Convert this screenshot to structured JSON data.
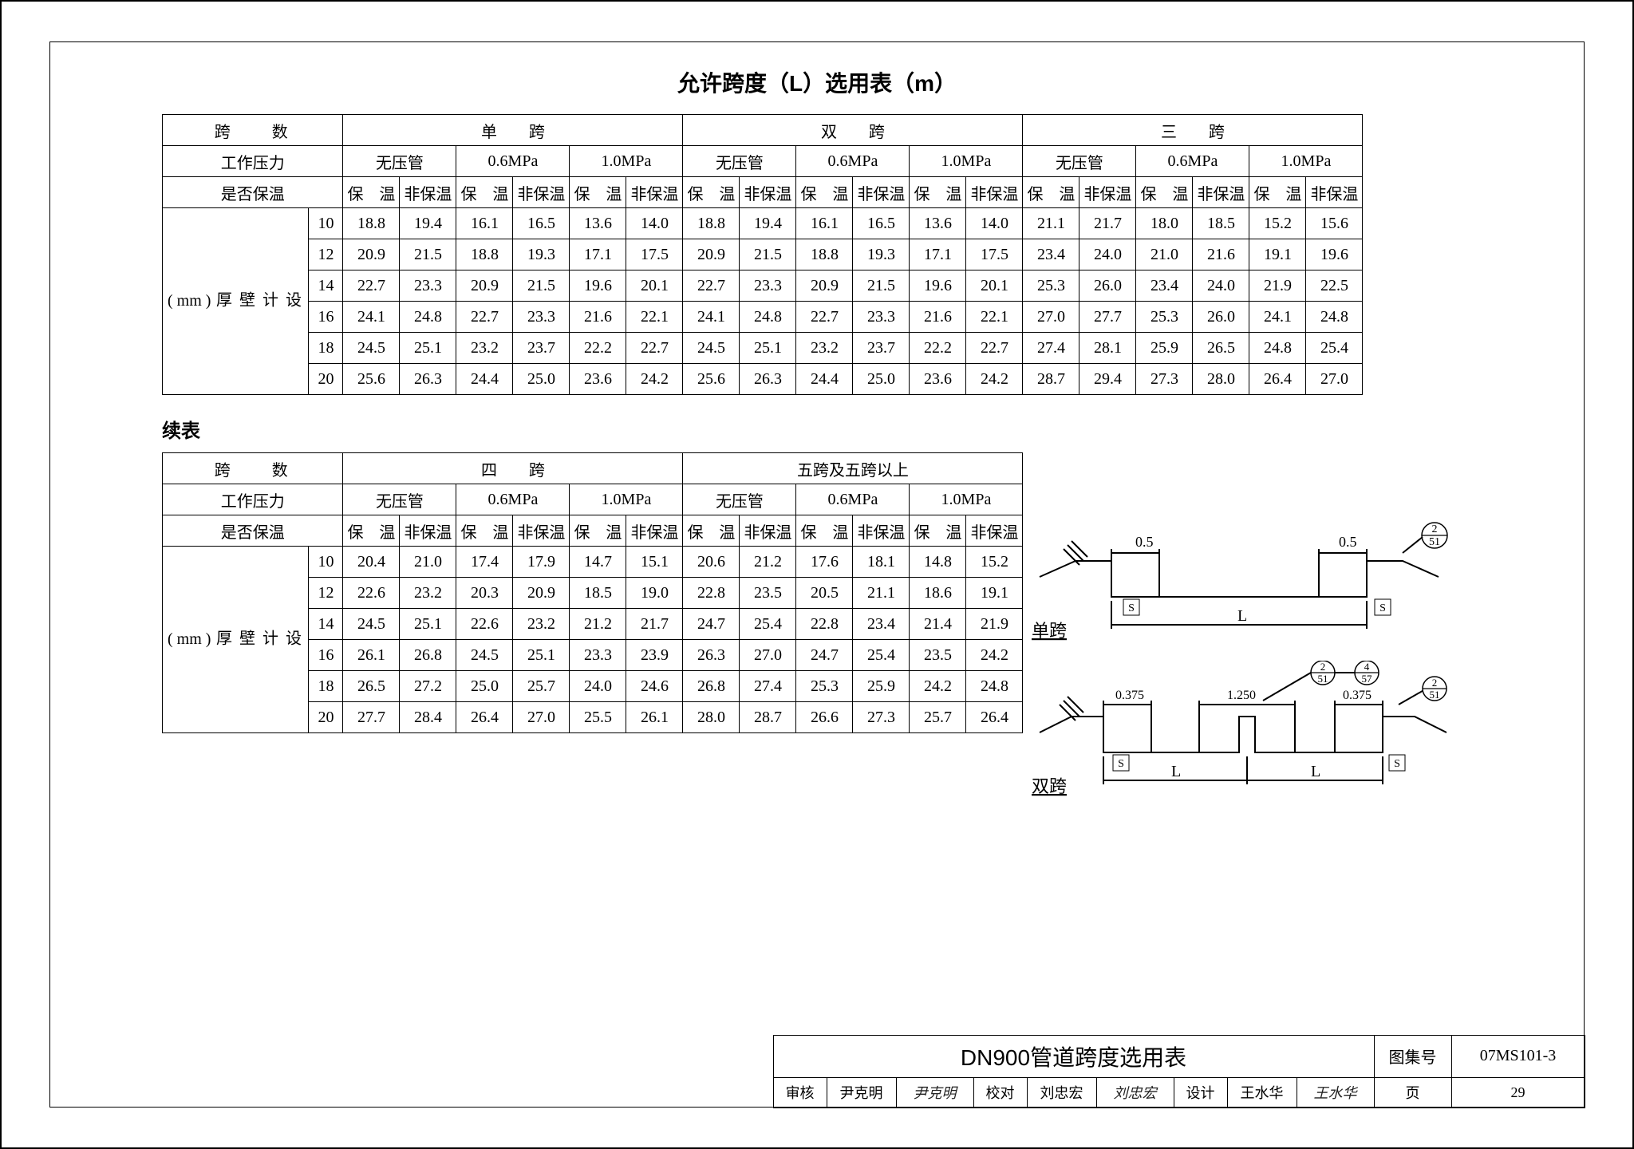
{
  "title": "允许跨度（L）选用表（m）",
  "subtitle_continued": "续表",
  "labels": {
    "span_count": "跨　　数",
    "work_pressure": "工作压力",
    "insulation": "是否保温",
    "design_wall": "设计壁厚",
    "mm": "( mm )",
    "no_pressure": "无压管",
    "p06": "0.6MPa",
    "p10": "1.0MPa",
    "insulated": "保　温",
    "not_insulated": "非保温",
    "single_span": "单　　跨",
    "double_span": "双　　跨",
    "triple_span": "三　　跨",
    "quad_span": "四　　跨",
    "five_plus": "五跨及五跨以上",
    "diag_single": "单跨",
    "diag_double": "双跨",
    "d_05": "0.5",
    "d_0375": "0.375",
    "d_1250": "1.250",
    "L": "L",
    "S": "S",
    "ref_2_51": "2",
    "ref_2_51b": "51",
    "ref_4_57a": "4",
    "ref_4_57b": "57"
  },
  "thicknesses": [
    "10",
    "12",
    "14",
    "16",
    "18",
    "20"
  ],
  "table1": {
    "rows": [
      [
        "18.8",
        "19.4",
        "16.1",
        "16.5",
        "13.6",
        "14.0",
        "18.8",
        "19.4",
        "16.1",
        "16.5",
        "13.6",
        "14.0",
        "21.1",
        "21.7",
        "18.0",
        "18.5",
        "15.2",
        "15.6"
      ],
      [
        "20.9",
        "21.5",
        "18.8",
        "19.3",
        "17.1",
        "17.5",
        "20.9",
        "21.5",
        "18.8",
        "19.3",
        "17.1",
        "17.5",
        "23.4",
        "24.0",
        "21.0",
        "21.6",
        "19.1",
        "19.6"
      ],
      [
        "22.7",
        "23.3",
        "20.9",
        "21.5",
        "19.6",
        "20.1",
        "22.7",
        "23.3",
        "20.9",
        "21.5",
        "19.6",
        "20.1",
        "25.3",
        "26.0",
        "23.4",
        "24.0",
        "21.9",
        "22.5"
      ],
      [
        "24.1",
        "24.8",
        "22.7",
        "23.3",
        "21.6",
        "22.1",
        "24.1",
        "24.8",
        "22.7",
        "23.3",
        "21.6",
        "22.1",
        "27.0",
        "27.7",
        "25.3",
        "26.0",
        "24.1",
        "24.8"
      ],
      [
        "24.5",
        "25.1",
        "23.2",
        "23.7",
        "22.2",
        "22.7",
        "24.5",
        "25.1",
        "23.2",
        "23.7",
        "22.2",
        "22.7",
        "27.4",
        "28.1",
        "25.9",
        "26.5",
        "24.8",
        "25.4"
      ],
      [
        "25.6",
        "26.3",
        "24.4",
        "25.0",
        "23.6",
        "24.2",
        "25.6",
        "26.3",
        "24.4",
        "25.0",
        "23.6",
        "24.2",
        "28.7",
        "29.4",
        "27.3",
        "28.0",
        "26.4",
        "27.0"
      ]
    ]
  },
  "table2": {
    "rows": [
      [
        "20.4",
        "21.0",
        "17.4",
        "17.9",
        "14.7",
        "15.1",
        "20.6",
        "21.2",
        "17.6",
        "18.1",
        "14.8",
        "15.2"
      ],
      [
        "22.6",
        "23.2",
        "20.3",
        "20.9",
        "18.5",
        "19.0",
        "22.8",
        "23.5",
        "20.5",
        "21.1",
        "18.6",
        "19.1"
      ],
      [
        "24.5",
        "25.1",
        "22.6",
        "23.2",
        "21.2",
        "21.7",
        "24.7",
        "25.4",
        "22.8",
        "23.4",
        "21.4",
        "21.9"
      ],
      [
        "26.1",
        "26.8",
        "24.5",
        "25.1",
        "23.3",
        "23.9",
        "26.3",
        "27.0",
        "24.7",
        "25.4",
        "23.5",
        "24.2"
      ],
      [
        "26.5",
        "27.2",
        "25.0",
        "25.7",
        "24.0",
        "24.6",
        "26.8",
        "27.4",
        "25.3",
        "25.9",
        "24.2",
        "24.8"
      ],
      [
        "27.7",
        "28.4",
        "26.4",
        "27.0",
        "25.5",
        "26.1",
        "28.0",
        "28.7",
        "26.6",
        "27.3",
        "25.7",
        "26.4"
      ]
    ]
  },
  "titleblock": {
    "doc_title": "DN900管道跨度选用表",
    "atlas_label": "图集号",
    "atlas_no": "07MS101-3",
    "page_label": "页",
    "page_no": "29",
    "review": "审核",
    "reviewer": "尹克明",
    "check": "校对",
    "checker": "刘忠宏",
    "design": "设计",
    "designer": "王水华"
  }
}
